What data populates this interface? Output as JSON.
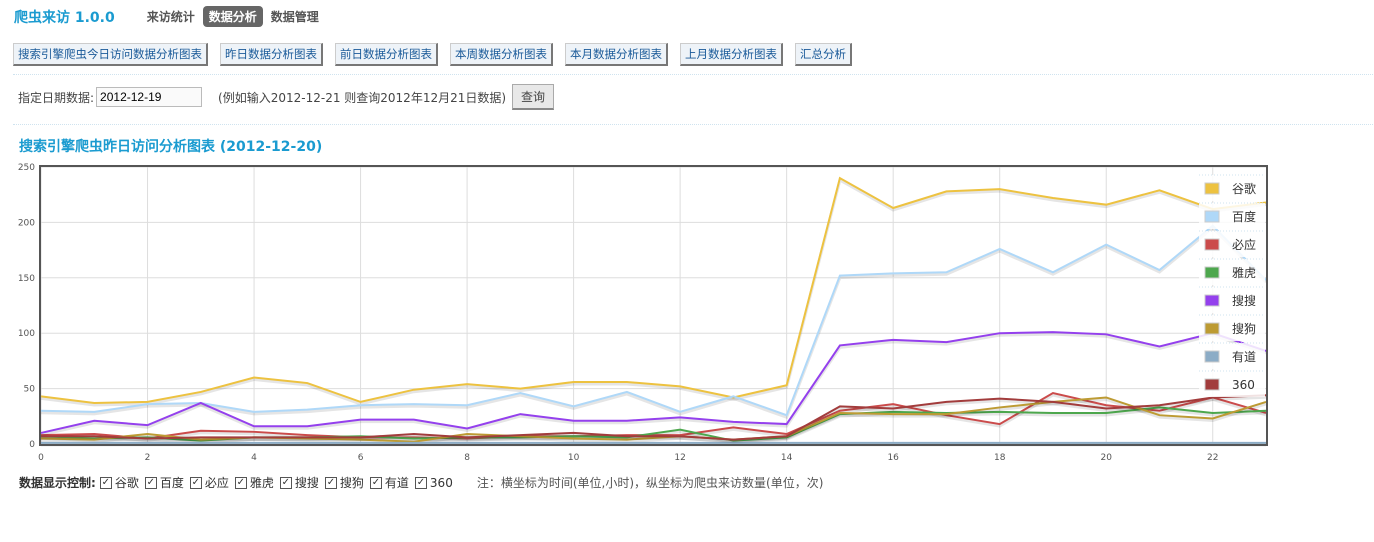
{
  "header": {
    "brand": "爬虫来访 1.0.0",
    "nav": [
      {
        "label": "来访统计",
        "active": false
      },
      {
        "label": "数据分析",
        "active": true
      },
      {
        "label": "数据管理",
        "active": false
      }
    ]
  },
  "buttons": [
    "搜索引擎爬虫今日访问数据分析图表",
    "昨日数据分析图表",
    "前日数据分析图表",
    "本周数据分析图表",
    "本月数据分析图表",
    "上月数据分析图表",
    "汇总分析"
  ],
  "query": {
    "label": "指定日期数据:",
    "value": "2012-12-19",
    "hint": "(例如输入2012-12-21 则查询2012年12月21日数据)",
    "submit": "查询"
  },
  "chart_title": "搜索引擎爬虫昨日访问分析图表 (2012-12-20)",
  "chart_data": {
    "type": "line",
    "x": [
      0,
      1,
      2,
      3,
      4,
      5,
      6,
      7,
      8,
      9,
      10,
      11,
      12,
      13,
      14,
      15,
      16,
      17,
      18,
      19,
      20,
      21,
      22,
      23
    ],
    "xlim": [
      0,
      23
    ],
    "ylim": [
      0,
      250
    ],
    "xticks": [
      0,
      2,
      4,
      6,
      8,
      10,
      12,
      14,
      16,
      18,
      20,
      22
    ],
    "yticks": [
      0,
      50,
      100,
      150,
      200,
      250
    ],
    "grid": true,
    "legend": "top-right",
    "series": [
      {
        "name": "谷歌",
        "color": "#edc240",
        "values": [
          43,
          37,
          38,
          47,
          60,
          55,
          38,
          49,
          54,
          50,
          56,
          56,
          52,
          42,
          53,
          240,
          213,
          228,
          230,
          222,
          216,
          229,
          212,
          218
        ]
      },
      {
        "name": "百度",
        "color": "#afd8f8",
        "values": [
          30,
          29,
          36,
          37,
          29,
          31,
          35,
          36,
          35,
          46,
          34,
          47,
          29,
          43,
          26,
          152,
          154,
          155,
          176,
          155,
          180,
          157,
          197,
          148
        ]
      },
      {
        "name": "必应",
        "color": "#cb4b4b",
        "values": [
          8,
          9,
          5,
          12,
          11,
          8,
          6,
          6,
          5,
          7,
          7,
          8,
          8,
          15,
          9,
          30,
          36,
          26,
          18,
          46,
          35,
          30,
          42,
          28
        ]
      },
      {
        "name": "雅虎",
        "color": "#4da74d",
        "values": [
          7,
          5,
          6,
          3,
          6,
          6,
          7,
          5,
          6,
          6,
          7,
          6,
          13,
          3,
          6,
          27,
          29,
          28,
          29,
          28,
          28,
          33,
          28,
          30
        ]
      },
      {
        "name": "搜搜",
        "color": "#9440ed",
        "values": [
          10,
          21,
          17,
          37,
          16,
          16,
          22,
          22,
          14,
          27,
          21,
          21,
          24,
          20,
          18,
          89,
          94,
          92,
          100,
          101,
          99,
          88,
          100,
          84
        ]
      },
      {
        "name": "搜狗",
        "color": "#bd9b33",
        "values": [
          5,
          4,
          9,
          4,
          6,
          5,
          4,
          2,
          9,
          7,
          5,
          4,
          7,
          4,
          7,
          28,
          27,
          27,
          33,
          38,
          42,
          26,
          23,
          38
        ]
      },
      {
        "name": "有道",
        "color": "#8cacc6",
        "values": [
          1,
          1,
          1,
          1,
          1,
          1,
          1,
          1,
          1,
          1,
          1,
          1,
          1,
          1,
          1,
          1,
          1,
          1,
          1,
          1,
          1,
          1,
          1,
          1
        ]
      },
      {
        "name": "360",
        "color": "#a23c3c",
        "values": [
          7,
          7,
          5,
          6,
          6,
          6,
          6,
          9,
          6,
          8,
          10,
          7,
          7,
          4,
          7,
          34,
          32,
          38,
          41,
          38,
          32,
          35,
          42,
          44
        ]
      }
    ]
  },
  "controls": {
    "label": "数据显示控制:",
    "items": [
      "谷歌",
      "百度",
      "必应",
      "雅虎",
      "搜搜",
      "搜狗",
      "有道",
      "360"
    ],
    "note": "注：横坐标为时间(单位,小时)，纵坐标为爬虫来访数量(单位，次)"
  }
}
